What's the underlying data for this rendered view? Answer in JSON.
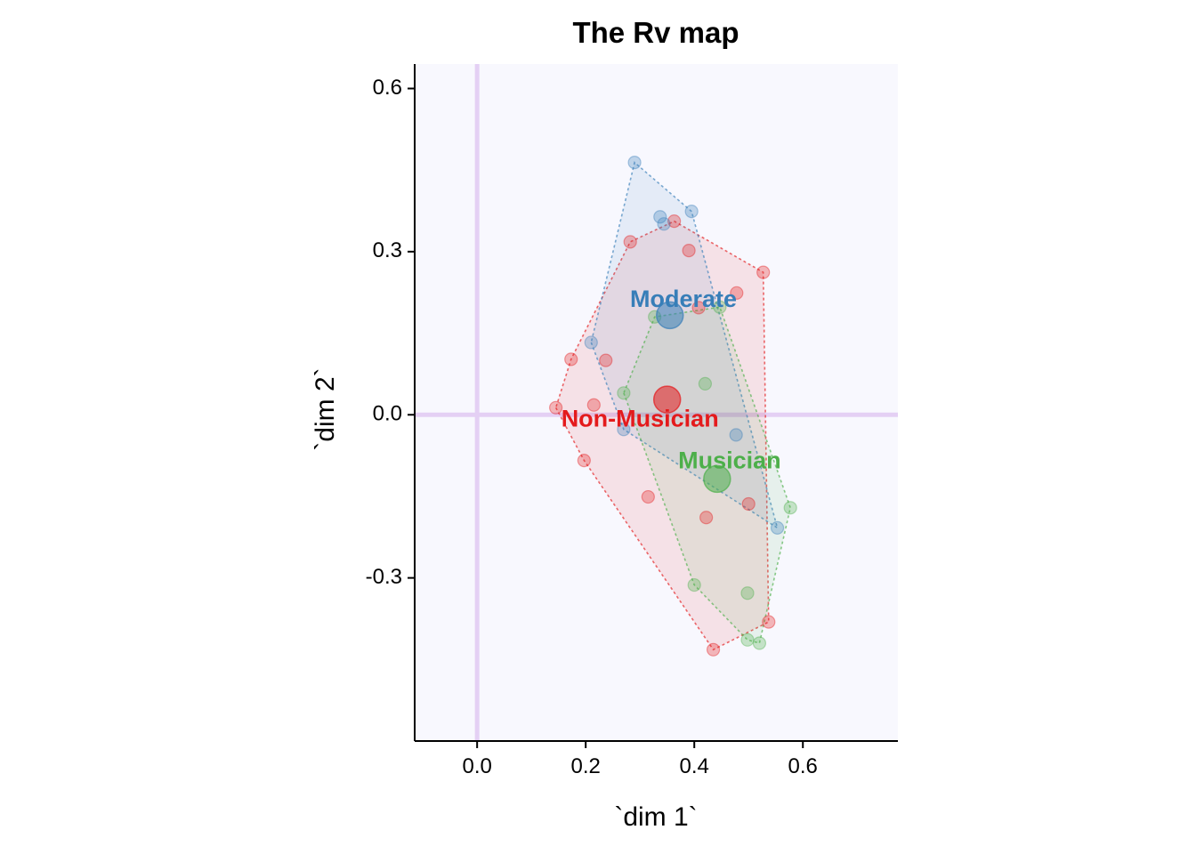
{
  "chart_data": {
    "type": "scatter",
    "title": "The Rv map",
    "xlabel": "`dim 1`",
    "ylabel": "`dim 2`",
    "xlim": [
      -0.115,
      0.775
    ],
    "ylim": [
      -0.6,
      0.645
    ],
    "xticks": [
      0.0,
      0.2,
      0.4,
      0.6
    ],
    "xtick_labels": [
      "0.0",
      "0.2",
      "0.4",
      "0.6"
    ],
    "yticks": [
      -0.3,
      0.0,
      0.3,
      0.6
    ],
    "ytick_labels": [
      "-0.3",
      "0.0",
      "0.3",
      "0.6"
    ],
    "grid": false,
    "reference_lines": {
      "x": 0,
      "y": 0,
      "color": "#e4d0f4"
    },
    "background": "#f8f8fe",
    "series": [
      {
        "name": "Non-Musician",
        "color": "#e41a1c",
        "centroid": [
          0.35,
          0.028
        ],
        "points": [
          [
            0.145,
            0.013
          ],
          [
            0.173,
            0.102
          ],
          [
            0.197,
            -0.084
          ],
          [
            0.215,
            0.018
          ],
          [
            0.237,
            0.1
          ],
          [
            0.282,
            0.318
          ],
          [
            0.315,
            -0.151
          ],
          [
            0.363,
            0.356
          ],
          [
            0.39,
            0.302
          ],
          [
            0.408,
            0.197
          ],
          [
            0.422,
            -0.189
          ],
          [
            0.435,
            -0.432
          ],
          [
            0.478,
            0.224
          ],
          [
            0.5,
            -0.164
          ],
          [
            0.527,
            0.262
          ],
          [
            0.537,
            -0.381
          ]
        ]
      },
      {
        "name": "Moderate",
        "color": "#377eb8",
        "centroid": [
          0.355,
          0.183
        ],
        "points": [
          [
            0.21,
            0.133
          ],
          [
            0.27,
            -0.027
          ],
          [
            0.29,
            0.464
          ],
          [
            0.337,
            0.364
          ],
          [
            0.344,
            0.351
          ],
          [
            0.395,
            0.374
          ],
          [
            0.477,
            -0.037
          ],
          [
            0.553,
            -0.208
          ]
        ]
      },
      {
        "name": "Musician",
        "color": "#4daf4a",
        "centroid": [
          0.442,
          -0.118
        ],
        "points": [
          [
            0.27,
            0.04
          ],
          [
            0.327,
            0.18
          ],
          [
            0.4,
            -0.313
          ],
          [
            0.42,
            0.057
          ],
          [
            0.447,
            0.198
          ],
          [
            0.498,
            -0.328
          ],
          [
            0.498,
            -0.414
          ],
          [
            0.52,
            -0.42
          ],
          [
            0.577,
            -0.171
          ]
        ]
      }
    ],
    "labels": [
      {
        "text": "Moderate",
        "color": "#377eb8",
        "x": 0.38,
        "y": 0.21
      },
      {
        "text": "Non-Musician",
        "color": "#e41a1c",
        "x": 0.3,
        "y": -0.01
      },
      {
        "text": "Musician",
        "color": "#4daf4a",
        "x": 0.465,
        "y": -0.087
      }
    ]
  }
}
